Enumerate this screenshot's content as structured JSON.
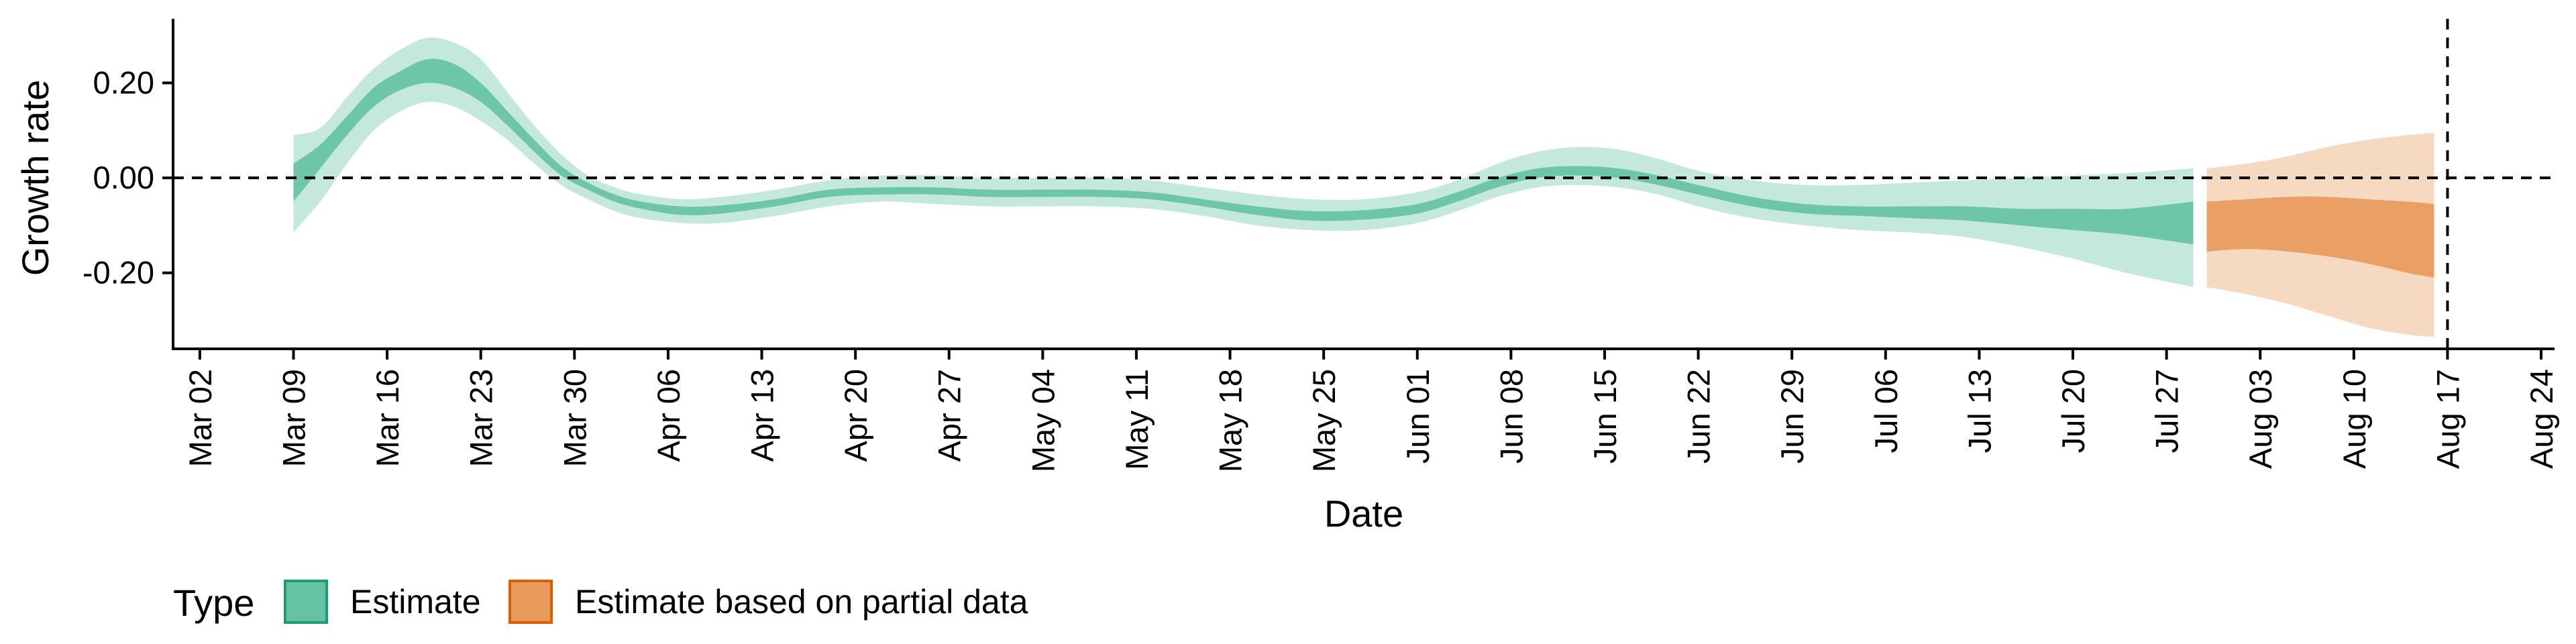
{
  "chart_data": {
    "type": "area",
    "title": "",
    "xlabel": "Date",
    "ylabel": "Growth rate",
    "grid": false,
    "xlim": [
      "2020-02-29",
      "2020-08-25"
    ],
    "ylim": [
      -0.36,
      0.335
    ],
    "x_ticks": [
      {
        "date": "2020-03-02",
        "label": "Mar 02"
      },
      {
        "date": "2020-03-09",
        "label": "Mar 09"
      },
      {
        "date": "2020-03-16",
        "label": "Mar 16"
      },
      {
        "date": "2020-03-23",
        "label": "Mar 23"
      },
      {
        "date": "2020-03-30",
        "label": "Mar 30"
      },
      {
        "date": "2020-04-06",
        "label": "Apr 06"
      },
      {
        "date": "2020-04-13",
        "label": "Apr 13"
      },
      {
        "date": "2020-04-20",
        "label": "Apr 20"
      },
      {
        "date": "2020-04-27",
        "label": "Apr 27"
      },
      {
        "date": "2020-05-04",
        "label": "May 04"
      },
      {
        "date": "2020-05-11",
        "label": "May 11"
      },
      {
        "date": "2020-05-18",
        "label": "May 18"
      },
      {
        "date": "2020-05-25",
        "label": "May 25"
      },
      {
        "date": "2020-06-01",
        "label": "Jun 01"
      },
      {
        "date": "2020-06-08",
        "label": "Jun 08"
      },
      {
        "date": "2020-06-15",
        "label": "Jun 15"
      },
      {
        "date": "2020-06-22",
        "label": "Jun 22"
      },
      {
        "date": "2020-06-29",
        "label": "Jun 29"
      },
      {
        "date": "2020-07-06",
        "label": "Jul 06"
      },
      {
        "date": "2020-07-13",
        "label": "Jul 13"
      },
      {
        "date": "2020-07-20",
        "label": "Jul 20"
      },
      {
        "date": "2020-07-27",
        "label": "Jul 27"
      },
      {
        "date": "2020-08-03",
        "label": "Aug 03"
      },
      {
        "date": "2020-08-10",
        "label": "Aug 10"
      },
      {
        "date": "2020-08-17",
        "label": "Aug 17"
      },
      {
        "date": "2020-08-24",
        "label": "Aug 24"
      }
    ],
    "y_ticks": [
      {
        "value": 0.2,
        "label": "0.20"
      },
      {
        "value": 0.0,
        "label": "0.00"
      },
      {
        "value": -0.2,
        "label": "-0.20"
      }
    ],
    "reference_lines": {
      "horizontal_y": 0.0,
      "vertical_date": "2020-08-17",
      "style": "dashed"
    },
    "legend": {
      "title": "Type",
      "position": "bottom-left",
      "entries": [
        {
          "label": "Estimate",
          "fill": "#66c2a5",
          "border": "#1b9e77"
        },
        {
          "label": "Estimate based on partial data",
          "fill": "#e89a5c",
          "border": "#d95f02"
        }
      ]
    },
    "series": [
      {
        "name": "Estimate",
        "color": "#66c2a5",
        "points": [
          {
            "date": "2020-03-09",
            "lo90": -0.115,
            "lo50": -0.05,
            "hi50": 0.03,
            "hi90": 0.09
          },
          {
            "date": "2020-03-11",
            "lo90": -0.05,
            "lo50": 0.02,
            "hi50": 0.07,
            "hi90": 0.105
          },
          {
            "date": "2020-03-13",
            "lo90": 0.03,
            "lo50": 0.09,
            "hi50": 0.13,
            "hi90": 0.17
          },
          {
            "date": "2020-03-15",
            "lo90": 0.1,
            "lo50": 0.15,
            "hi50": 0.19,
            "hi90": 0.23
          },
          {
            "date": "2020-03-17",
            "lo90": 0.14,
            "lo50": 0.185,
            "hi50": 0.225,
            "hi90": 0.27
          },
          {
            "date": "2020-03-19",
            "lo90": 0.16,
            "lo50": 0.2,
            "hi50": 0.25,
            "hi90": 0.295
          },
          {
            "date": "2020-03-21",
            "lo90": 0.15,
            "lo50": 0.19,
            "hi50": 0.24,
            "hi90": 0.285
          },
          {
            "date": "2020-03-23",
            "lo90": 0.12,
            "lo50": 0.16,
            "hi50": 0.2,
            "hi90": 0.25
          },
          {
            "date": "2020-03-25",
            "lo90": 0.08,
            "lo50": 0.11,
            "hi50": 0.14,
            "hi90": 0.18
          },
          {
            "date": "2020-03-27",
            "lo90": 0.03,
            "lo50": 0.055,
            "hi50": 0.08,
            "hi90": 0.11
          },
          {
            "date": "2020-03-29",
            "lo90": -0.015,
            "lo50": 0.005,
            "hi50": 0.025,
            "hi90": 0.05
          },
          {
            "date": "2020-03-31",
            "lo90": -0.045,
            "lo50": -0.025,
            "hi50": -0.01,
            "hi90": 0.005
          },
          {
            "date": "2020-04-02",
            "lo90": -0.07,
            "lo50": -0.05,
            "hi50": -0.035,
            "hi90": -0.02
          },
          {
            "date": "2020-04-04",
            "lo90": -0.085,
            "lo50": -0.065,
            "hi50": -0.05,
            "hi90": -0.035
          },
          {
            "date": "2020-04-07",
            "lo90": -0.095,
            "lo50": -0.078,
            "hi50": -0.06,
            "hi90": -0.045
          },
          {
            "date": "2020-04-10",
            "lo90": -0.095,
            "lo50": -0.075,
            "hi50": -0.058,
            "hi90": -0.04
          },
          {
            "date": "2020-04-14",
            "lo90": -0.08,
            "lo50": -0.06,
            "hi50": -0.045,
            "hi90": -0.025
          },
          {
            "date": "2020-04-18",
            "lo90": -0.06,
            "lo50": -0.04,
            "hi50": -0.025,
            "hi90": -0.005
          },
          {
            "date": "2020-04-22",
            "lo90": -0.05,
            "lo50": -0.035,
            "hi50": -0.02,
            "hi90": 0.005
          },
          {
            "date": "2020-04-26",
            "lo90": -0.055,
            "lo50": -0.035,
            "hi50": -0.02,
            "hi90": 0.005
          },
          {
            "date": "2020-04-30",
            "lo90": -0.06,
            "lo50": -0.04,
            "hi50": -0.025,
            "hi90": 0.0
          },
          {
            "date": "2020-05-04",
            "lo90": -0.06,
            "lo50": -0.04,
            "hi50": -0.025,
            "hi90": 0.0
          },
          {
            "date": "2020-05-08",
            "lo90": -0.06,
            "lo50": -0.04,
            "hi50": -0.025,
            "hi90": 0.0
          },
          {
            "date": "2020-05-12",
            "lo90": -0.065,
            "lo50": -0.045,
            "hi50": -0.03,
            "hi90": -0.005
          },
          {
            "date": "2020-05-16",
            "lo90": -0.08,
            "lo50": -0.06,
            "hi50": -0.045,
            "hi90": -0.02
          },
          {
            "date": "2020-05-20",
            "lo90": -0.1,
            "lo50": -0.078,
            "hi50": -0.06,
            "hi90": -0.035
          },
          {
            "date": "2020-05-24",
            "lo90": -0.11,
            "lo50": -0.09,
            "hi50": -0.07,
            "hi90": -0.045
          },
          {
            "date": "2020-05-28",
            "lo90": -0.11,
            "lo50": -0.088,
            "hi50": -0.068,
            "hi90": -0.045
          },
          {
            "date": "2020-06-01",
            "lo90": -0.095,
            "lo50": -0.075,
            "hi50": -0.055,
            "hi90": -0.03
          },
          {
            "date": "2020-06-04",
            "lo90": -0.07,
            "lo50": -0.05,
            "hi50": -0.03,
            "hi90": -0.005
          },
          {
            "date": "2020-06-07",
            "lo90": -0.04,
            "lo50": -0.02,
            "hi50": 0.0,
            "hi90": 0.03
          },
          {
            "date": "2020-06-10",
            "lo90": -0.02,
            "lo50": 0.0,
            "hi50": 0.02,
            "hi90": 0.055
          },
          {
            "date": "2020-06-13",
            "lo90": -0.015,
            "lo50": 0.005,
            "hi50": 0.025,
            "hi90": 0.065
          },
          {
            "date": "2020-06-16",
            "lo90": -0.02,
            "lo50": 0.0,
            "hi50": 0.02,
            "hi90": 0.06
          },
          {
            "date": "2020-06-19",
            "lo90": -0.035,
            "lo50": -0.015,
            "hi50": 0.005,
            "hi90": 0.04
          },
          {
            "date": "2020-06-22",
            "lo90": -0.06,
            "lo50": -0.035,
            "hi50": -0.015,
            "hi90": 0.015
          },
          {
            "date": "2020-06-26",
            "lo90": -0.085,
            "lo50": -0.06,
            "hi50": -0.04,
            "hi90": -0.005
          },
          {
            "date": "2020-06-30",
            "lo90": -0.1,
            "lo50": -0.075,
            "hi50": -0.055,
            "hi90": -0.015
          },
          {
            "date": "2020-07-04",
            "lo90": -0.11,
            "lo50": -0.08,
            "hi50": -0.06,
            "hi90": -0.015
          },
          {
            "date": "2020-07-08",
            "lo90": -0.115,
            "lo50": -0.085,
            "hi50": -0.06,
            "hi90": -0.01
          },
          {
            "date": "2020-07-12",
            "lo90": -0.125,
            "lo50": -0.09,
            "hi50": -0.06,
            "hi90": -0.005
          },
          {
            "date": "2020-07-16",
            "lo90": -0.145,
            "lo50": -0.1,
            "hi50": -0.065,
            "hi90": 0.0
          },
          {
            "date": "2020-07-20",
            "lo90": -0.17,
            "lo50": -0.11,
            "hi50": -0.065,
            "hi90": 0.005
          },
          {
            "date": "2020-07-24",
            "lo90": -0.2,
            "lo50": -0.12,
            "hi50": -0.065,
            "hi90": 0.01
          },
          {
            "date": "2020-07-29",
            "lo90": -0.23,
            "lo50": -0.14,
            "hi50": -0.05,
            "hi90": 0.02
          }
        ]
      },
      {
        "name": "Estimate based on partial data",
        "color": "#e89a5c",
        "points": [
          {
            "date": "2020-07-30",
            "lo90": -0.23,
            "lo50": -0.155,
            "hi50": -0.05,
            "hi90": 0.02
          },
          {
            "date": "2020-08-02",
            "lo90": -0.245,
            "lo50": -0.15,
            "hi50": -0.045,
            "hi90": 0.03
          },
          {
            "date": "2020-08-05",
            "lo90": -0.265,
            "lo50": -0.155,
            "hi50": -0.04,
            "hi90": 0.045
          },
          {
            "date": "2020-08-08",
            "lo90": -0.29,
            "lo50": -0.165,
            "hi50": -0.04,
            "hi90": 0.065
          },
          {
            "date": "2020-08-11",
            "lo90": -0.315,
            "lo50": -0.18,
            "hi50": -0.045,
            "hi90": 0.08
          },
          {
            "date": "2020-08-14",
            "lo90": -0.33,
            "lo50": -0.2,
            "hi50": -0.05,
            "hi90": 0.09
          },
          {
            "date": "2020-08-16",
            "lo90": -0.335,
            "lo50": -0.21,
            "hi50": -0.055,
            "hi90": 0.095
          }
        ]
      }
    ]
  }
}
